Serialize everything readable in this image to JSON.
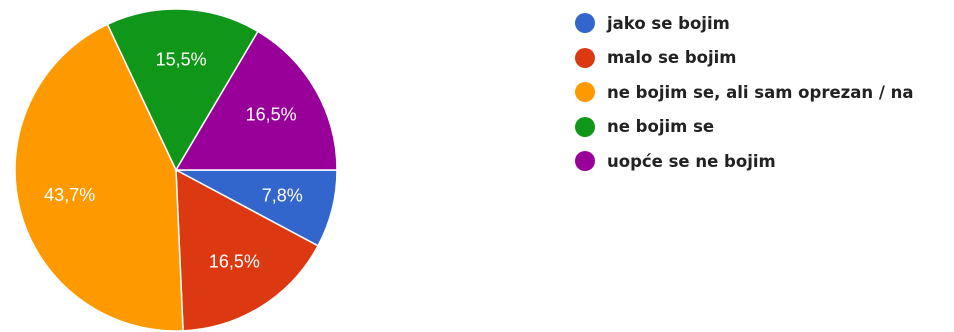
{
  "chart_data": {
    "type": "pie",
    "slices": [
      {
        "label": "jako se bojim",
        "value": 7.8,
        "display": "7,8%",
        "color": "#3366cc"
      },
      {
        "label": "malo se bojim",
        "value": 16.5,
        "display": "16,5%",
        "color": "#dc3912"
      },
      {
        "label": "ne bojim se, ali sam oprezan / na",
        "value": 43.7,
        "display": "43,7%",
        "color": "#ff9900"
      },
      {
        "label": "ne bojim se",
        "value": 15.5,
        "display": "15,5%",
        "color": "#109618"
      },
      {
        "label": "uopće se ne bojim",
        "value": 16.5,
        "display": "16,5%",
        "color": "#990099"
      }
    ],
    "start_angle": "3 o'clock, clockwise",
    "legend_position": "right"
  }
}
